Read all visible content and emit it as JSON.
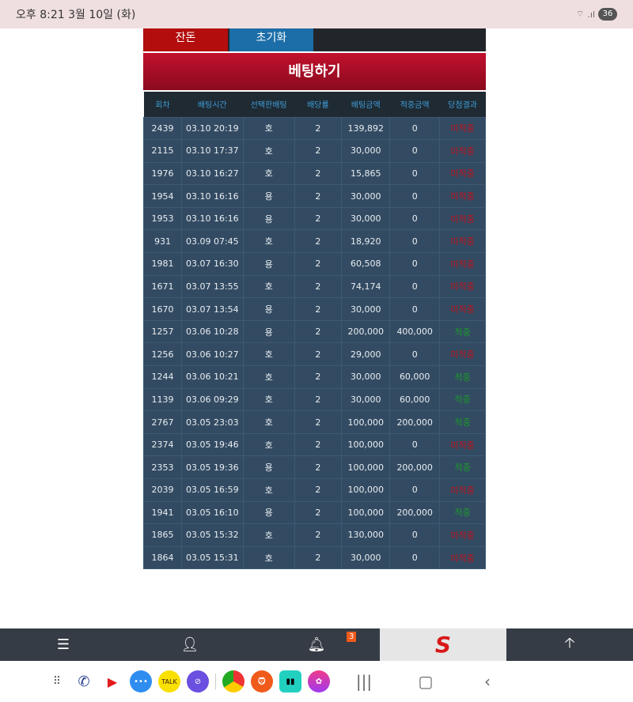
{
  "status": {
    "time": "오후 8:21  3월 10일 (화)",
    "battery": "36"
  },
  "buttons": {
    "change": "잔돈",
    "reset": "초기화"
  },
  "title": "베팅하기",
  "table": {
    "headers": [
      "회차",
      "배팅시간",
      "선택한배팅",
      "배당률",
      "배팅금액",
      "적중금액",
      "당첨결과"
    ],
    "rows": [
      [
        "2439",
        "03.10 20:19",
        "호",
        "2",
        "139,892",
        "0",
        "미적중"
      ],
      [
        "2115",
        "03.10 17:37",
        "호",
        "2",
        "30,000",
        "0",
        "미적중"
      ],
      [
        "1976",
        "03.10 16:27",
        "호",
        "2",
        "15,865",
        "0",
        "미적중"
      ],
      [
        "1954",
        "03.10 16:16",
        "용",
        "2",
        "30,000",
        "0",
        "미적중"
      ],
      [
        "1953",
        "03.10 16:16",
        "용",
        "2",
        "30,000",
        "0",
        "미적중"
      ],
      [
        "931",
        "03.09 07:45",
        "호",
        "2",
        "18,920",
        "0",
        "미적중"
      ],
      [
        "1981",
        "03.07 16:30",
        "용",
        "2",
        "60,508",
        "0",
        "미적중"
      ],
      [
        "1671",
        "03.07 13:55",
        "호",
        "2",
        "74,174",
        "0",
        "미적중"
      ],
      [
        "1670",
        "03.07 13:54",
        "용",
        "2",
        "30,000",
        "0",
        "미적중"
      ],
      [
        "1257",
        "03.06 10:28",
        "용",
        "2",
        "200,000",
        "400,000",
        "적중"
      ],
      [
        "1256",
        "03.06 10:27",
        "호",
        "2",
        "29,000",
        "0",
        "미적중"
      ],
      [
        "1244",
        "03.06 10:21",
        "호",
        "2",
        "30,000",
        "60,000",
        "적중"
      ],
      [
        "1139",
        "03.06 09:29",
        "호",
        "2",
        "30,000",
        "60,000",
        "적중"
      ],
      [
        "2767",
        "03.05 23:03",
        "호",
        "2",
        "100,000",
        "200,000",
        "적중"
      ],
      [
        "2374",
        "03.05 19:46",
        "호",
        "2",
        "100,000",
        "0",
        "미적중"
      ],
      [
        "2353",
        "03.05 19:36",
        "용",
        "2",
        "100,000",
        "200,000",
        "적중"
      ],
      [
        "2039",
        "03.05 16:59",
        "호",
        "2",
        "100,000",
        "0",
        "미적중"
      ],
      [
        "1941",
        "03.05 16:10",
        "용",
        "2",
        "100,000",
        "200,000",
        "적중"
      ],
      [
        "1865",
        "03.05 15:32",
        "호",
        "2",
        "130,000",
        "0",
        "미적중"
      ],
      [
        "1864",
        "03.05 15:31",
        "호",
        "2",
        "30,000",
        "0",
        "미적중"
      ]
    ]
  },
  "nav": {
    "notification_count": "3",
    "logo": "S"
  },
  "dock": {
    "kakao": "TALK"
  },
  "colors": {
    "lose": "#c0111b",
    "win": "#1a9a2a",
    "title": "#c2102e"
  }
}
